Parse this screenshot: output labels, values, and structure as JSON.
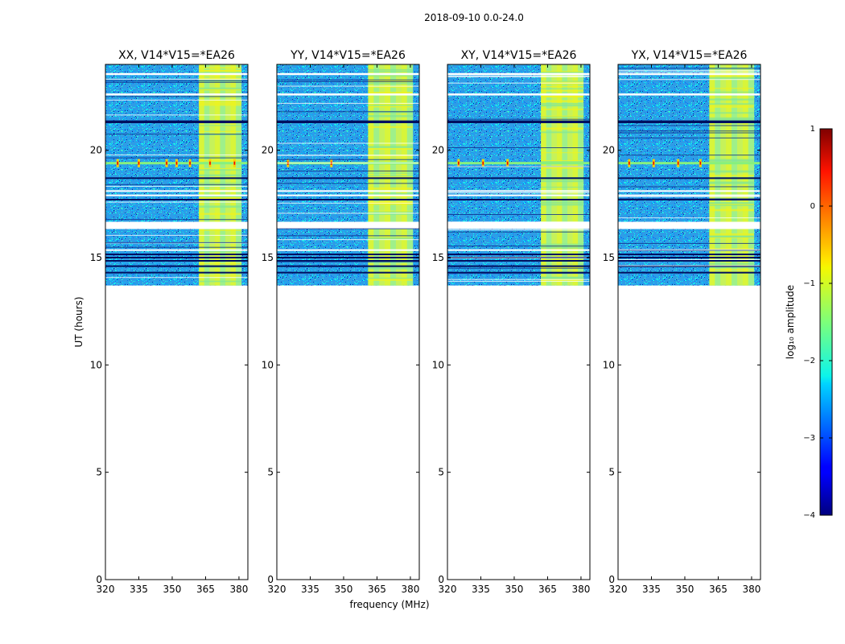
{
  "chart_data": {
    "type": "heatmap",
    "suptitle": "2018-09-10 0.0-24.0",
    "xlabel": "frequency (MHz)",
    "ylabel": "UT (hours)",
    "xlim": [
      320,
      384
    ],
    "ylim": [
      0,
      24
    ],
    "xticks": [
      320,
      335,
      350,
      365,
      380
    ],
    "yticks": [
      0,
      5,
      10,
      15,
      20
    ],
    "data_time_range": [
      13.7,
      24
    ],
    "panels": [
      {
        "title": "XX, V14*V15=*EA26",
        "band_low": 362,
        "band_high": 381,
        "rfi_time": 19.4,
        "spike_freqs": [
          325.5,
          335,
          347.5,
          352,
          358,
          367,
          378
        ]
      },
      {
        "title": "YY, V14*V15=*EA26",
        "band_low": 361,
        "band_high": 381,
        "rfi_time": 19.4,
        "spike_freqs": [
          325,
          344.5
        ]
      },
      {
        "title": "XY, V14*V15=*EA26",
        "band_low": 362,
        "band_high": 381,
        "rfi_time": 19.4,
        "spike_freqs": [
          325,
          336,
          347
        ]
      },
      {
        "title": "YX, V14*V15=*EA26",
        "band_low": 361,
        "band_high": 381,
        "rfi_time": 19.4,
        "spike_freqs": [
          325,
          336,
          347,
          357
        ]
      }
    ],
    "blank_rows_hours": [
      23.55,
      22.6,
      16.5,
      17.9,
      18.1,
      15.35
    ],
    "dark_rows_hours": [
      21.3,
      21.35,
      15.15,
      15.0,
      14.85,
      14.6,
      18.7,
      17.7,
      14.3
    ],
    "colorbar": {
      "label": "log₁₀ amplitude",
      "range": [
        -4,
        1
      ],
      "ticks": [
        -4,
        -3,
        -2,
        -1,
        0,
        1
      ],
      "tick_labels": [
        "−4",
        "−3",
        "−2",
        "−1",
        "0",
        "1"
      ],
      "colormap": "jet"
    }
  }
}
